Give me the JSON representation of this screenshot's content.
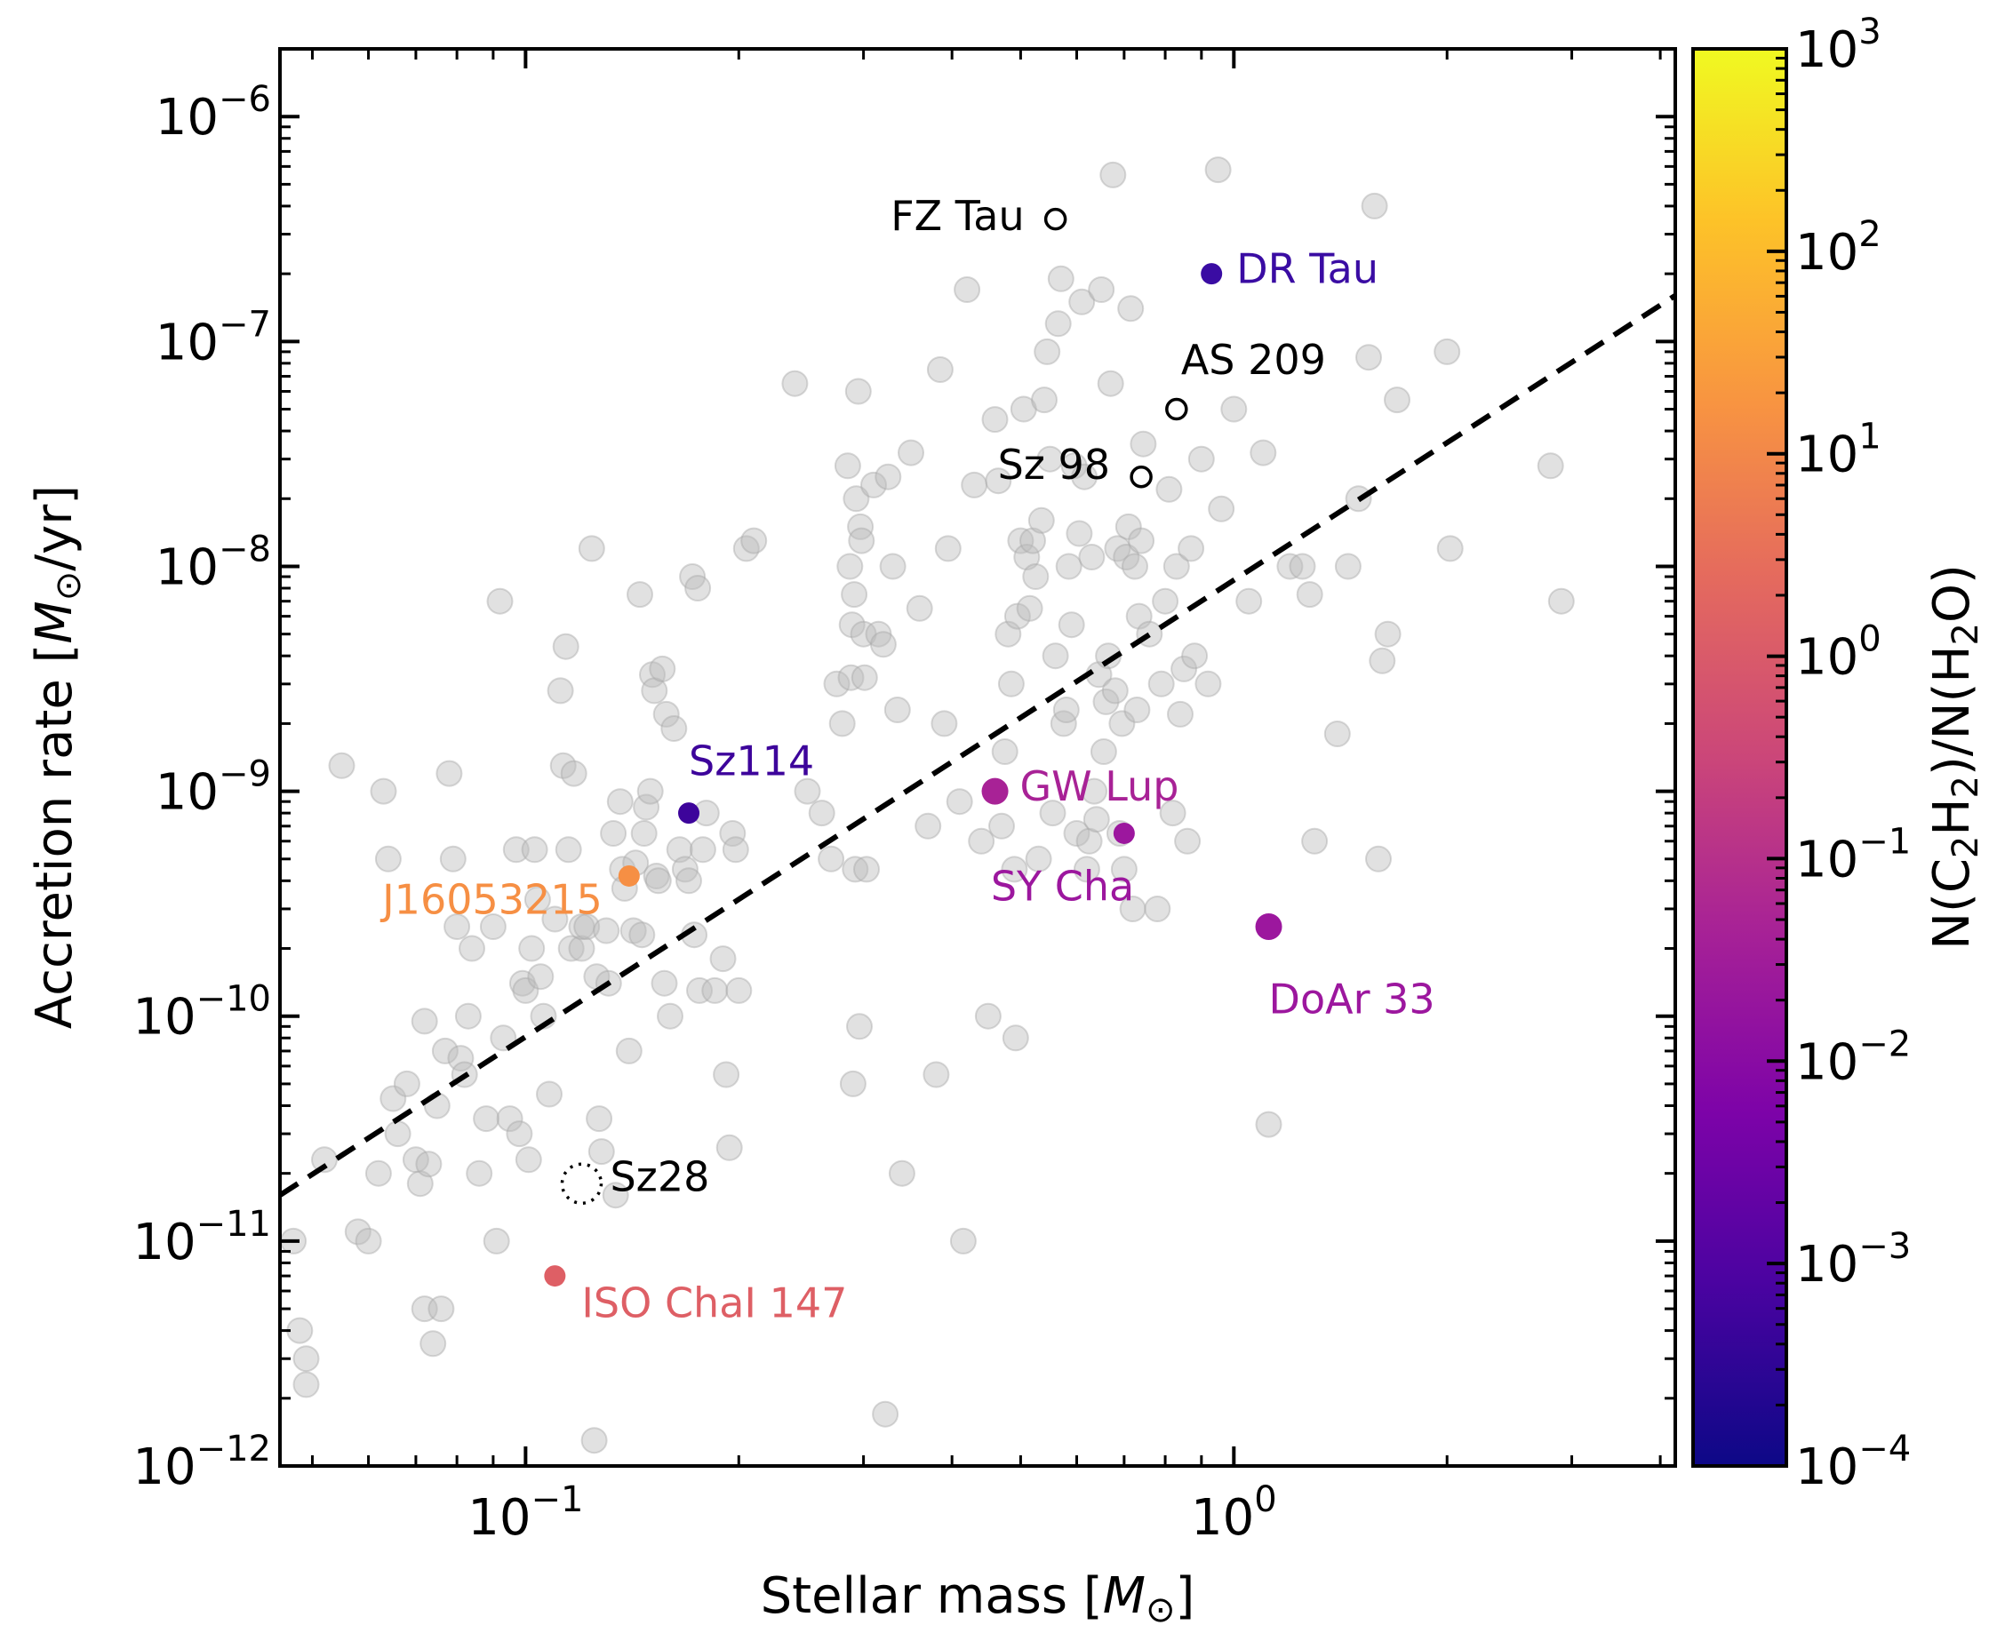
{
  "chart_data": {
    "type": "scatter",
    "xlabel": "Stellar mass [M⊙]",
    "ylabel": "Accretion rate [M⊙/yr]",
    "xscale": "log",
    "yscale": "log",
    "xlim": [
      0.045,
      4.2
    ],
    "ylim": [
      1e-12,
      2e-06
    ],
    "x_ticks": [
      {
        "value": 0.1,
        "base": "10",
        "exp": "−1"
      },
      {
        "value": 1,
        "base": "10",
        "exp": "0"
      }
    ],
    "y_ticks": [
      {
        "value": 1e-12,
        "base": "10",
        "exp": "−12"
      },
      {
        "value": 1e-11,
        "base": "10",
        "exp": "−11"
      },
      {
        "value": 1e-10,
        "base": "10",
        "exp": "−10"
      },
      {
        "value": 1e-09,
        "base": "10",
        "exp": "−9"
      },
      {
        "value": 1e-08,
        "base": "10",
        "exp": "−8"
      },
      {
        "value": 1e-07,
        "base": "10",
        "exp": "−7"
      },
      {
        "value": 1e-06,
        "base": "10",
        "exp": "−6"
      }
    ],
    "grid": false,
    "fit_line": {
      "style": "dashed",
      "color": "#000000",
      "points": [
        [
          0.045,
          1.6e-11
        ],
        [
          4.2,
          1.6e-07
        ]
      ]
    },
    "background_sample": {
      "name": "",
      "color": "#bdbdbd",
      "points": [
        [
          0.047,
          1e-11
        ],
        [
          0.048,
          4e-12
        ],
        [
          0.049,
          2.3e-12
        ],
        [
          0.049,
          3e-12
        ],
        [
          0.052,
          2.3e-11
        ],
        [
          0.055,
          1.3e-09
        ],
        [
          0.058,
          1.1e-11
        ],
        [
          0.06,
          1e-11
        ],
        [
          0.062,
          2e-11
        ],
        [
          0.063,
          1e-09
        ],
        [
          0.064,
          5e-10
        ],
        [
          0.065,
          4.3e-11
        ],
        [
          0.066,
          3e-11
        ],
        [
          0.068,
          5e-11
        ],
        [
          0.07,
          2.3e-11
        ],
        [
          0.071,
          1.8e-11
        ],
        [
          0.072,
          5e-12
        ],
        [
          0.072,
          9.5e-11
        ],
        [
          0.073,
          2.2e-11
        ],
        [
          0.074,
          3.5e-12
        ],
        [
          0.075,
          4e-11
        ],
        [
          0.076,
          5e-12
        ],
        [
          0.077,
          7e-11
        ],
        [
          0.078,
          1.2e-09
        ],
        [
          0.079,
          5e-10
        ],
        [
          0.08,
          2.5e-10
        ],
        [
          0.081,
          6.5e-11
        ],
        [
          0.082,
          5.5e-11
        ],
        [
          0.083,
          1e-10
        ],
        [
          0.084,
          2e-10
        ],
        [
          0.086,
          2e-11
        ],
        [
          0.088,
          3.5e-11
        ],
        [
          0.09,
          2.5e-10
        ],
        [
          0.091,
          1e-11
        ],
        [
          0.092,
          7e-09
        ],
        [
          0.093,
          8e-11
        ],
        [
          0.095,
          3.5e-11
        ],
        [
          0.097,
          5.5e-10
        ],
        [
          0.098,
          3e-11
        ],
        [
          0.099,
          1.4e-10
        ],
        [
          0.1,
          1.3e-10
        ],
        [
          0.101,
          2.3e-11
        ],
        [
          0.102,
          2e-10
        ],
        [
          0.103,
          5.5e-10
        ],
        [
          0.104,
          3.3e-10
        ],
        [
          0.105,
          1.5e-10
        ],
        [
          0.106,
          1e-10
        ],
        [
          0.108,
          4.5e-11
        ],
        [
          0.11,
          2.7e-10
        ],
        [
          0.112,
          2.8e-09
        ],
        [
          0.113,
          1.3e-09
        ],
        [
          0.114,
          4.4e-09
        ],
        [
          0.115,
          5.5e-10
        ],
        [
          0.116,
          2e-10
        ],
        [
          0.117,
          1.2e-09
        ],
        [
          0.12,
          2e-10
        ],
        [
          0.12,
          2.5e-10
        ],
        [
          0.122,
          2.5e-10
        ],
        [
          0.124,
          1.2e-08
        ],
        [
          0.125,
          1.3e-12
        ],
        [
          0.126,
          1.5e-10
        ],
        [
          0.127,
          3.5e-11
        ],
        [
          0.128,
          2.5e-11
        ],
        [
          0.13,
          2.4e-10
        ],
        [
          0.131,
          1.4e-10
        ],
        [
          0.133,
          6.5e-10
        ],
        [
          0.134,
          1.6e-11
        ],
        [
          0.136,
          9e-10
        ],
        [
          0.137,
          4.5e-10
        ],
        [
          0.138,
          3.7e-10
        ],
        [
          0.14,
          7e-11
        ],
        [
          0.142,
          2.4e-10
        ],
        [
          0.143,
          4.8e-10
        ],
        [
          0.145,
          7.5e-09
        ],
        [
          0.146,
          2.3e-10
        ],
        [
          0.147,
          6.5e-10
        ],
        [
          0.148,
          8.5e-10
        ],
        [
          0.15,
          1e-09
        ],
        [
          0.151,
          3.3e-09
        ],
        [
          0.152,
          2.8e-09
        ],
        [
          0.153,
          4.2e-10
        ],
        [
          0.154,
          4e-10
        ],
        [
          0.156,
          3.5e-09
        ],
        [
          0.157,
          1.4e-10
        ],
        [
          0.158,
          2.2e-09
        ],
        [
          0.16,
          1e-10
        ],
        [
          0.162,
          1.9e-09
        ],
        [
          0.165,
          5.5e-10
        ],
        [
          0.168,
          4.5e-10
        ],
        [
          0.17,
          4e-10
        ],
        [
          0.172,
          9e-09
        ],
        [
          0.173,
          2.3e-10
        ],
        [
          0.175,
          8e-09
        ],
        [
          0.176,
          1.3e-10
        ],
        [
          0.178,
          5.5e-10
        ],
        [
          0.18,
          8e-10
        ],
        [
          0.185,
          1.3e-10
        ],
        [
          0.19,
          1.8e-10
        ],
        [
          0.192,
          5.5e-11
        ],
        [
          0.194,
          2.6e-11
        ],
        [
          0.196,
          6.5e-10
        ],
        [
          0.198,
          5.5e-10
        ],
        [
          0.2,
          1.3e-10
        ],
        [
          0.205,
          1.2e-08
        ],
        [
          0.21,
          1.3e-08
        ],
        [
          0.24,
          6.5e-08
        ],
        [
          0.25,
          1e-09
        ],
        [
          0.262,
          8e-10
        ],
        [
          0.27,
          5e-10
        ],
        [
          0.275,
          3e-09
        ],
        [
          0.28,
          2e-09
        ],
        [
          0.285,
          2.8e-08
        ],
        [
          0.287,
          1e-08
        ],
        [
          0.288,
          3.2e-09
        ],
        [
          0.289,
          5.5e-09
        ],
        [
          0.29,
          5e-11
        ],
        [
          0.291,
          7.5e-09
        ],
        [
          0.292,
          4.5e-10
        ],
        [
          0.293,
          2e-08
        ],
        [
          0.295,
          6e-08
        ],
        [
          0.296,
          9e-11
        ],
        [
          0.297,
          1.5e-08
        ],
        [
          0.298,
          1.3e-08
        ],
        [
          0.3,
          5e-09
        ],
        [
          0.301,
          3.2e-09
        ],
        [
          0.303,
          4.5e-10
        ],
        [
          0.31,
          2.3e-08
        ],
        [
          0.315,
          5e-09
        ],
        [
          0.32,
          4.5e-09
        ],
        [
          0.322,
          1.7e-12
        ],
        [
          0.325,
          2.5e-08
        ],
        [
          0.33,
          1e-08
        ],
        [
          0.335,
          2.3e-09
        ],
        [
          0.34,
          2e-11
        ],
        [
          0.35,
          3.2e-08
        ],
        [
          0.36,
          6.5e-09
        ],
        [
          0.37,
          7e-10
        ],
        [
          0.38,
          5.5e-11
        ],
        [
          0.385,
          7.5e-08
        ],
        [
          0.39,
          2e-09
        ],
        [
          0.395,
          1.2e-08
        ],
        [
          0.41,
          9e-10
        ],
        [
          0.415,
          1e-11
        ],
        [
          0.42,
          1.7e-07
        ],
        [
          0.43,
          2.3e-08
        ],
        [
          0.44,
          6e-10
        ],
        [
          0.45,
          1e-10
        ],
        [
          0.46,
          4.5e-08
        ],
        [
          0.465,
          2.4e-08
        ],
        [
          0.47,
          7e-10
        ],
        [
          0.475,
          1.5e-09
        ],
        [
          0.48,
          5e-09
        ],
        [
          0.485,
          3e-09
        ],
        [
          0.49,
          4.5e-10
        ],
        [
          0.492,
          8e-11
        ],
        [
          0.495,
          6e-09
        ],
        [
          0.5,
          1.3e-08
        ],
        [
          0.505,
          5e-08
        ],
        [
          0.51,
          1.1e-08
        ],
        [
          0.515,
          6.5e-09
        ],
        [
          0.52,
          1.3e-08
        ],
        [
          0.525,
          9e-09
        ],
        [
          0.53,
          5e-10
        ],
        [
          0.535,
          1.6e-08
        ],
        [
          0.54,
          5.5e-08
        ],
        [
          0.545,
          9e-08
        ],
        [
          0.55,
          3e-08
        ],
        [
          0.555,
          8e-10
        ],
        [
          0.56,
          4e-09
        ],
        [
          0.565,
          1.2e-07
        ],
        [
          0.57,
          1.9e-07
        ],
        [
          0.575,
          2e-09
        ],
        [
          0.58,
          2.3e-09
        ],
        [
          0.585,
          1e-08
        ],
        [
          0.59,
          5.5e-09
        ],
        [
          0.595,
          2.8e-08
        ],
        [
          0.6,
          6.5e-10
        ],
        [
          0.605,
          1.4e-08
        ],
        [
          0.61,
          1.5e-07
        ],
        [
          0.615,
          2.5e-08
        ],
        [
          0.62,
          4.5e-10
        ],
        [
          0.625,
          6e-10
        ],
        [
          0.63,
          1.1e-08
        ],
        [
          0.635,
          1e-09
        ],
        [
          0.64,
          7.5e-10
        ],
        [
          0.645,
          3.3e-09
        ],
        [
          0.65,
          1.7e-07
        ],
        [
          0.655,
          1.5e-09
        ],
        [
          0.66,
          2.5e-09
        ],
        [
          0.665,
          4e-09
        ],
        [
          0.67,
          6.5e-08
        ],
        [
          0.675,
          5.5e-07
        ],
        [
          0.68,
          2.8e-09
        ],
        [
          0.685,
          1.2e-08
        ],
        [
          0.69,
          6.5e-10
        ],
        [
          0.695,
          2e-09
        ],
        [
          0.7,
          4.5e-10
        ],
        [
          0.705,
          1.1e-08
        ],
        [
          0.71,
          1.5e-08
        ],
        [
          0.715,
          1.4e-07
        ],
        [
          0.72,
          3e-10
        ],
        [
          0.725,
          1e-08
        ],
        [
          0.73,
          2.3e-09
        ],
        [
          0.735,
          6e-09
        ],
        [
          0.74,
          1.3e-08
        ],
        [
          0.745,
          3.5e-08
        ],
        [
          0.76,
          5e-09
        ],
        [
          0.78,
          3e-10
        ],
        [
          0.79,
          3e-09
        ],
        [
          0.8,
          7e-09
        ],
        [
          0.81,
          2.2e-08
        ],
        [
          0.82,
          8e-10
        ],
        [
          0.83,
          1e-08
        ],
        [
          0.84,
          2.2e-09
        ],
        [
          0.85,
          3.5e-09
        ],
        [
          0.86,
          6e-10
        ],
        [
          0.87,
          1.2e-08
        ],
        [
          0.88,
          4e-09
        ],
        [
          0.9,
          3e-08
        ],
        [
          0.92,
          3e-09
        ],
        [
          0.95,
          5.8e-07
        ],
        [
          0.96,
          1.8e-08
        ],
        [
          1.0,
          5e-08
        ],
        [
          1.05,
          7e-09
        ],
        [
          1.1,
          3.2e-08
        ],
        [
          1.12,
          3.3e-11
        ],
        [
          1.2,
          1e-08
        ],
        [
          1.25,
          1e-08
        ],
        [
          1.28,
          7.5e-09
        ],
        [
          1.3,
          6e-10
        ],
        [
          1.4,
          1.8e-09
        ],
        [
          1.45,
          1e-08
        ],
        [
          1.5,
          2e-08
        ],
        [
          1.55,
          8.5e-08
        ],
        [
          1.58,
          4e-07
        ],
        [
          1.6,
          5e-10
        ],
        [
          1.62,
          3.8e-09
        ],
        [
          1.65,
          5e-09
        ],
        [
          1.7,
          5.5e-08
        ],
        [
          2.0,
          9e-08
        ],
        [
          2.02,
          1.2e-08
        ],
        [
          2.8,
          2.8e-08
        ],
        [
          2.9,
          7e-09
        ]
      ]
    },
    "highlighted_sources": [
      {
        "name": "FZ Tau",
        "x": 0.56,
        "y": 3.5e-07,
        "marker": "open",
        "color": "#000000"
      },
      {
        "name": "DR Tau",
        "x": 0.93,
        "y": 2e-07,
        "marker": "filled",
        "size": "small",
        "color": "#3a0ca3"
      },
      {
        "name": "AS 209",
        "x": 0.83,
        "y": 5e-08,
        "marker": "open",
        "color": "#000000"
      },
      {
        "name": "Sz 98",
        "x": 0.74,
        "y": 2.5e-08,
        "marker": "open",
        "color": "#000000"
      },
      {
        "name": "Sz114",
        "x": 0.17,
        "y": 8e-10,
        "marker": "filled",
        "size": "small",
        "color": "#3d049b"
      },
      {
        "name": "GW Lup",
        "x": 0.46,
        "y": 1e-09,
        "marker": "filled",
        "size": "large",
        "color": "#a82296"
      },
      {
        "name": "SY Cha",
        "x": 0.7,
        "y": 6.5e-10,
        "marker": "filled",
        "size": "small",
        "color": "#9c179e"
      },
      {
        "name": "J16053215",
        "x": 0.14,
        "y": 4.2e-10,
        "marker": "filled",
        "size": "small",
        "color": "#f68f44"
      },
      {
        "name": "DoAr 33",
        "x": 1.12,
        "y": 2.5e-10,
        "marker": "filled",
        "size": "large",
        "color": "#9c179e"
      },
      {
        "name": "Sz28",
        "x": 0.12,
        "y": 1.8e-11,
        "marker": "dotted-open",
        "color": "#000000"
      },
      {
        "name": "ISO ChaI 147",
        "x": 0.11,
        "y": 7e-12,
        "marker": "filled",
        "size": "small",
        "color": "#de5f65"
      }
    ],
    "colorbar": {
      "label": "N(C2H2)/N(H2O)",
      "colormap": "plasma",
      "scale": "log",
      "range": [
        0.0001,
        1000.0
      ],
      "ticks": [
        {
          "value": 0.0001,
          "base": "10",
          "exp": "−4"
        },
        {
          "value": 0.001,
          "base": "10",
          "exp": "−3"
        },
        {
          "value": 0.01,
          "base": "10",
          "exp": "−2"
        },
        {
          "value": 0.1,
          "base": "10",
          "exp": "−1"
        },
        {
          "value": 1,
          "base": "10",
          "exp": "0"
        },
        {
          "value": 10,
          "base": "10",
          "exp": "1"
        },
        {
          "value": 100,
          "base": "10",
          "exp": "2"
        },
        {
          "value": 1000,
          "base": "10",
          "exp": "3"
        }
      ]
    }
  }
}
